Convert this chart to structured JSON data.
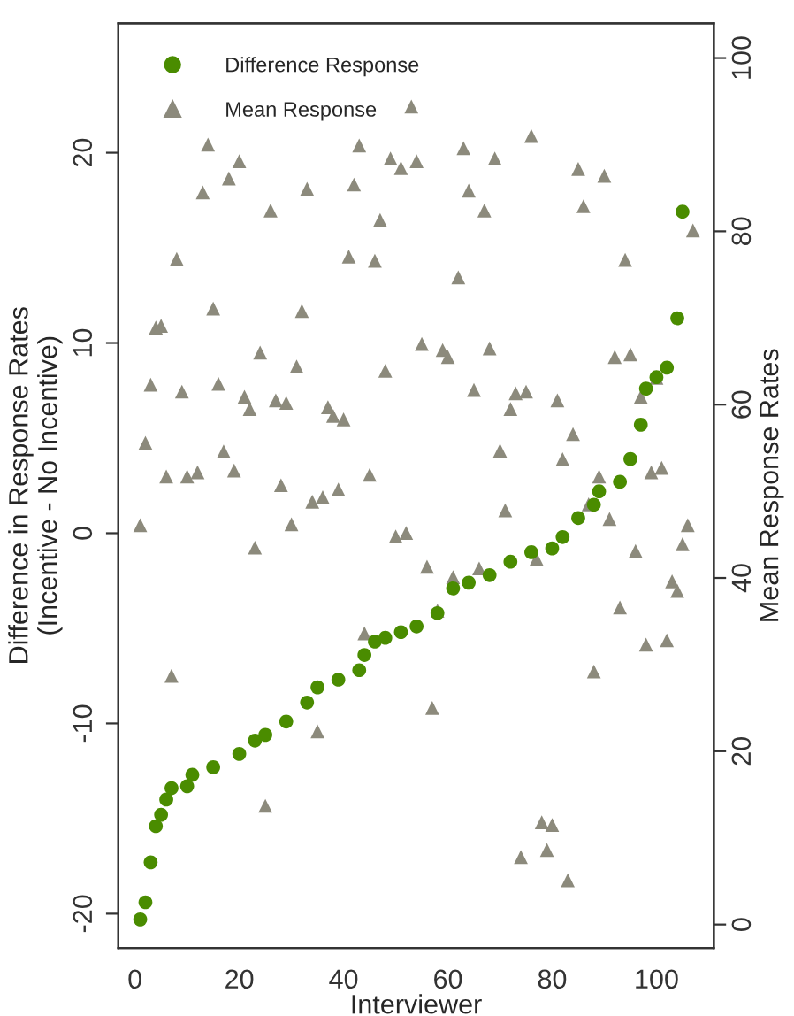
{
  "chart_data": {
    "type": "scatter",
    "xlabel": "Interviewer",
    "ylabel": "Difference in Response Rates\n(Incentive - No Incentive)",
    "y2label": "Mean Response Rates",
    "xlim": [
      -3.2,
      111
    ],
    "xticks": [
      0,
      20,
      40,
      60,
      80,
      100
    ],
    "ylim": [
      -21.8,
      26.8
    ],
    "yticks": [
      -20,
      -10,
      0,
      10,
      20
    ],
    "y2lim": [
      -2.7,
      104
    ],
    "y2ticks": [
      0,
      20,
      40,
      60,
      80,
      100
    ],
    "legend": "top left",
    "grid": false,
    "series": [
      {
        "name": "Difference Response",
        "color": "#4a8c00",
        "marker": "circle",
        "axis": "y",
        "x": [
          1,
          2,
          3,
          4,
          5,
          6,
          7,
          10,
          11,
          15,
          20,
          23,
          25,
          29,
          33,
          35,
          39,
          43,
          44,
          46,
          48,
          51,
          54,
          58,
          61,
          64,
          68,
          72,
          76,
          80,
          82,
          85,
          88,
          89,
          93,
          95,
          97,
          98,
          100,
          102,
          104,
          105
        ],
        "values": [
          -20.3,
          -19.4,
          -17.3,
          -15.4,
          -14.8,
          -14.0,
          -13.4,
          -13.3,
          -12.7,
          -12.3,
          -11.6,
          -10.9,
          -10.6,
          -9.9,
          -8.9,
          -8.1,
          -7.7,
          -7.2,
          -6.4,
          -5.7,
          -5.5,
          -5.2,
          -4.9,
          -4.2,
          -2.9,
          -2.6,
          -2.2,
          -1.5,
          -1.0,
          -0.8,
          -0.2,
          0.8,
          1.5,
          2.2,
          2.7,
          3.9,
          5.7,
          7.6,
          8.2,
          8.7,
          11.3,
          16.9
        ]
      },
      {
        "name": "Mean Response",
        "color": "#8c8a7c",
        "marker": "triangle",
        "axis": "y2",
        "x": [
          14,
          20,
          18,
          13,
          26,
          33,
          43,
          42,
          49,
          51,
          47,
          8,
          41,
          46,
          15,
          32,
          4,
          5,
          24,
          31,
          48,
          3,
          9,
          16,
          21,
          22,
          27,
          29,
          37,
          38,
          40,
          2,
          6,
          10,
          12,
          17,
          19,
          28,
          34,
          36,
          39,
          45,
          53,
          54,
          63,
          69,
          76,
          85,
          90,
          64,
          67,
          86,
          107,
          94,
          62,
          55,
          59,
          60,
          68,
          92,
          95,
          100,
          65,
          73,
          75,
          81,
          97,
          72,
          84,
          70,
          82,
          99,
          101,
          89,
          71,
          87,
          1,
          23,
          30,
          50,
          44,
          7,
          35,
          25,
          52,
          56,
          61,
          66,
          77,
          58,
          57,
          91,
          96,
          106,
          105,
          103,
          104,
          93,
          98,
          102,
          88,
          78,
          80,
          74,
          79,
          83
        ],
        "values": [
          90.0,
          88.1,
          86.1,
          84.5,
          82.4,
          84.9,
          89.9,
          85.4,
          88.4,
          87.3,
          81.3,
          76.8,
          77.1,
          76.6,
          71.1,
          70.8,
          68.9,
          69.1,
          66.0,
          64.4,
          63.9,
          62.3,
          61.5,
          62.4,
          60.9,
          59.5,
          60.5,
          60.2,
          59.7,
          58.7,
          58.3,
          55.6,
          51.7,
          51.7,
          52.2,
          54.6,
          52.4,
          50.7,
          48.8,
          49.3,
          50.2,
          51.9,
          94.4,
          88.1,
          89.6,
          88.4,
          91.0,
          87.2,
          86.4,
          84.7,
          82.4,
          82.9,
          80.1,
          76.7,
          74.7,
          67.0,
          66.3,
          65.5,
          66.5,
          65.5,
          65.8,
          63.1,
          61.7,
          61.3,
          61.5,
          60.5,
          60.9,
          59.5,
          56.6,
          54.7,
          53.7,
          52.2,
          52.7,
          51.7,
          47.8,
          48.5,
          46.1,
          43.5,
          46.2,
          44.8,
          33.6,
          28.7,
          22.3,
          13.7,
          45.2,
          41.3,
          40.1,
          41.1,
          42.2,
          36.2,
          25.0,
          46.8,
          43.1,
          46.1,
          43.9,
          39.6,
          38.5,
          36.6,
          32.3,
          32.8,
          29.2,
          11.8,
          11.5,
          7.8,
          8.6,
          5.1
        ]
      }
    ]
  }
}
